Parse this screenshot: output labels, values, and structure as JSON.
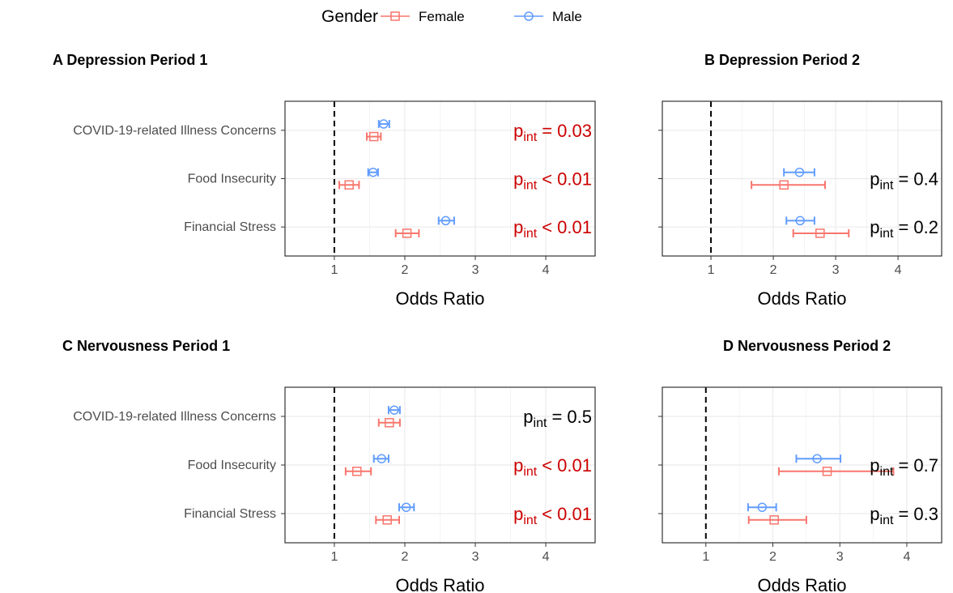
{
  "legend": {
    "title": "Gender"
  },
  "chart_data": [
    {
      "type": "errorbar",
      "title": "A Depression Period 1",
      "xlabel": "Odds Ratio",
      "categories": [
        "COVID-19-related Illness Concerns",
        "Food Insecurity",
        "Financial Stress"
      ],
      "series": [
        {
          "name": "Female",
          "color": "#F8766D",
          "marker": "square",
          "values": [
            1.56,
            1.21,
            2.03
          ],
          "lower": [
            1.46,
            1.07,
            1.87
          ],
          "upper": [
            1.66,
            1.35,
            2.2
          ]
        },
        {
          "name": "Male",
          "color": "#619CFF",
          "marker": "circle",
          "values": [
            1.7,
            1.55,
            2.58
          ],
          "lower": [
            1.63,
            1.48,
            2.48
          ],
          "upper": [
            1.78,
            1.62,
            2.7
          ]
        }
      ],
      "xlim": [
        0.3,
        4.7
      ],
      "xticks": [
        1,
        2,
        3,
        4
      ],
      "reference_line": 1,
      "grid": true,
      "annotation_symbol": "p",
      "annotation_subscript": "int",
      "annotations": [
        "= 0.03",
        "< 0.01",
        "< 0.01"
      ],
      "annotation_colors": [
        "#cc0000",
        "#cc0000",
        "#cc0000"
      ]
    },
    {
      "type": "errorbar",
      "title": "B Depression Period 2",
      "xlabel": "Odds Ratio",
      "series": [
        {
          "name": "Female",
          "color": "#F8766D",
          "marker": "square",
          "values": [
            null,
            2.17,
            2.75
          ],
          "lower": [
            null,
            1.65,
            2.32
          ],
          "upper": [
            null,
            2.83,
            3.21
          ]
        },
        {
          "name": "Male",
          "color": "#619CFF",
          "marker": "circle",
          "values": [
            null,
            2.42,
            2.43
          ],
          "lower": [
            null,
            2.17,
            2.21
          ],
          "upper": [
            null,
            2.66,
            2.66
          ]
        }
      ],
      "xlim": [
        0.22,
        4.7
      ],
      "xticks": [
        1,
        2,
        3,
        4
      ],
      "reference_line": 1,
      "grid": true,
      "annotation_symbol": "p",
      "annotation_subscript": "int",
      "annotations": [
        null,
        "= 0.4",
        "= 0.2"
      ],
      "annotation_colors": [
        null,
        "#000000",
        "#000000"
      ]
    },
    {
      "type": "errorbar",
      "title": "C Nervousness Period 1",
      "xlabel": "Odds Ratio",
      "categories": [
        "COVID-19-related Illness Concerns",
        "Food Insecurity",
        "Financial Stress"
      ],
      "series": [
        {
          "name": "Female",
          "color": "#F8766D",
          "marker": "square",
          "values": [
            1.78,
            1.32,
            1.75
          ],
          "lower": [
            1.63,
            1.16,
            1.59
          ],
          "upper": [
            1.93,
            1.52,
            1.92
          ]
        },
        {
          "name": "Male",
          "color": "#619CFF",
          "marker": "circle",
          "values": [
            1.85,
            1.67,
            2.02
          ],
          "lower": [
            1.77,
            1.56,
            1.92
          ],
          "upper": [
            1.93,
            1.77,
            2.13
          ]
        }
      ],
      "xlim": [
        0.3,
        4.7
      ],
      "xticks": [
        1,
        2,
        3,
        4
      ],
      "reference_line": 1,
      "grid": true,
      "annotation_symbol": "p",
      "annotation_subscript": "int",
      "annotations": [
        "= 0.5",
        "< 0.01",
        "< 0.01"
      ],
      "annotation_colors": [
        "#000000",
        "#cc0000",
        "#cc0000"
      ]
    },
    {
      "type": "errorbar",
      "title": "D Nervousness Period 2",
      "xlabel": "Odds Ratio",
      "series": [
        {
          "name": "Female",
          "color": "#F8766D",
          "marker": "square",
          "values": [
            null,
            2.81,
            2.02
          ],
          "lower": [
            null,
            2.09,
            1.64
          ],
          "upper": [
            null,
            3.8,
            2.5
          ]
        },
        {
          "name": "Male",
          "color": "#619CFF",
          "marker": "circle",
          "values": [
            null,
            2.66,
            1.84
          ],
          "lower": [
            null,
            2.35,
            1.63
          ],
          "upper": [
            null,
            3.01,
            2.05
          ]
        }
      ],
      "xlim": [
        0.35,
        4.52
      ],
      "xticks": [
        1,
        2,
        3,
        4
      ],
      "reference_line": 1,
      "grid": true,
      "annotation_symbol": "p",
      "annotation_subscript": "int",
      "annotations": [
        null,
        "= 0.7",
        "= 0.3"
      ],
      "annotation_colors": [
        null,
        "#000000",
        "#000000"
      ]
    }
  ]
}
